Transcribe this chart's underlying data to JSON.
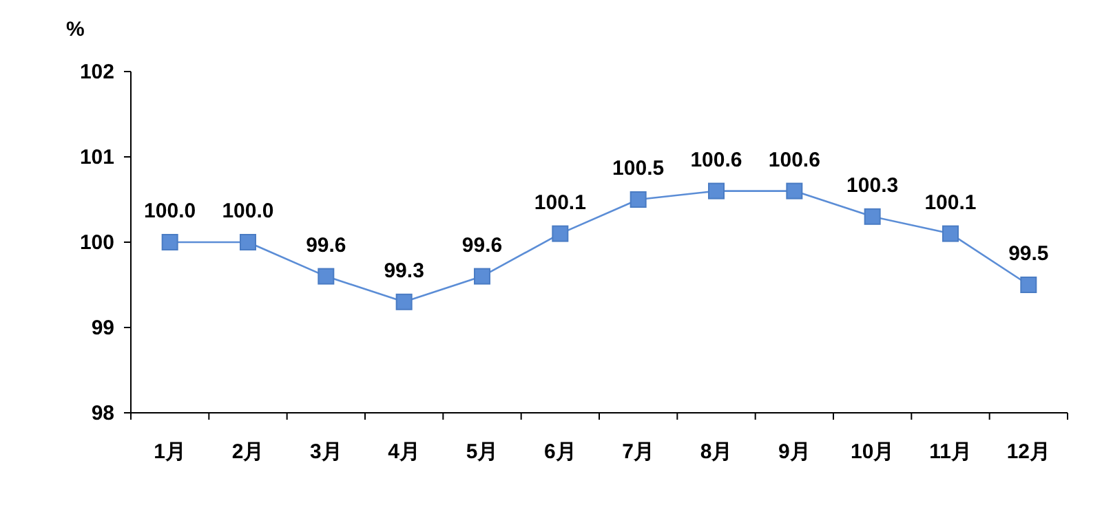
{
  "chart_data": {
    "type": "line",
    "ylabel": "%",
    "categories": [
      "1月",
      "2月",
      "3月",
      "4月",
      "5月",
      "6月",
      "7月",
      "8月",
      "9月",
      "10月",
      "11月",
      "12月"
    ],
    "series": [
      {
        "color": "#5b8dd6",
        "values": [
          100.0,
          100.0,
          99.6,
          99.3,
          99.6,
          100.1,
          100.5,
          100.6,
          100.6,
          100.3,
          100.1,
          99.5
        ],
        "value_labels": [
          "100.0",
          "100.0",
          "99.6",
          "99.3",
          "99.6",
          "100.1",
          "100.5",
          "100.6",
          "100.6",
          "100.3",
          "100.1",
          "99.5"
        ]
      }
    ],
    "ylim": [
      98,
      102
    ],
    "yticks": [
      98,
      99,
      100,
      101,
      102
    ],
    "marker": "square"
  }
}
